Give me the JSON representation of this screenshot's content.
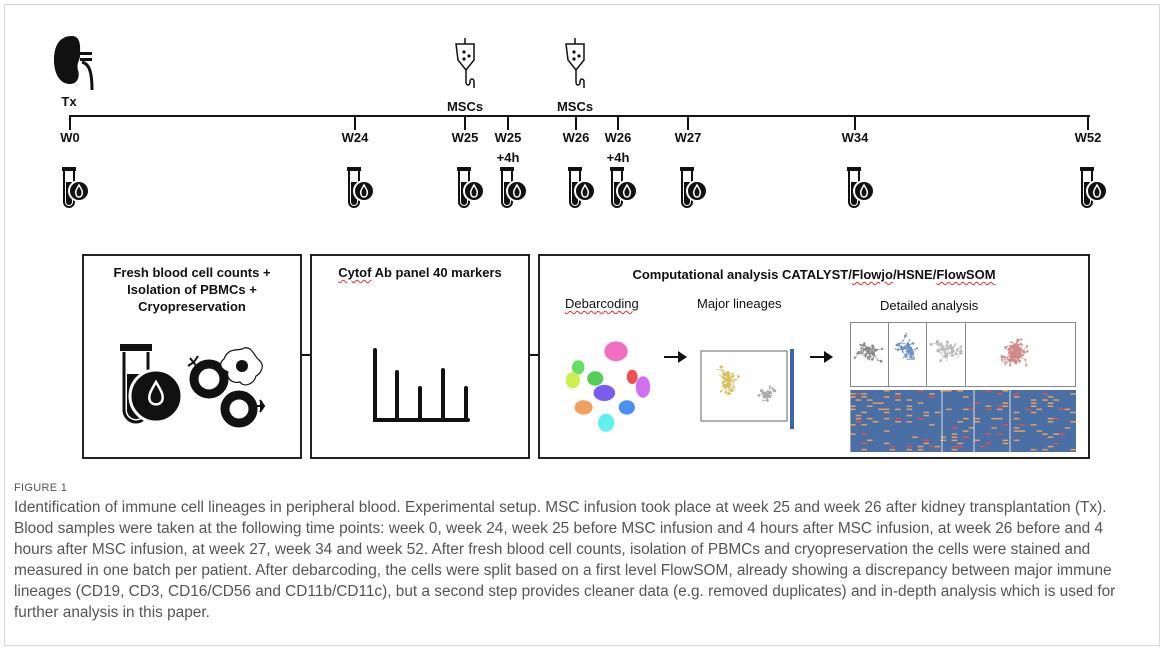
{
  "figure": {
    "transplant_label": "Tx",
    "infusions": [
      {
        "label": "MSCs",
        "timepoint": "W25"
      },
      {
        "label": "MSCs",
        "timepoint": "W26"
      }
    ],
    "timepoints": [
      {
        "label": "W0",
        "sub": ""
      },
      {
        "label": "W24",
        "sub": ""
      },
      {
        "label": "W25",
        "sub": ""
      },
      {
        "label": "W25",
        "sub": "+4h"
      },
      {
        "label": "W26",
        "sub": ""
      },
      {
        "label": "W26",
        "sub": "+4h"
      },
      {
        "label": "W27",
        "sub": ""
      },
      {
        "label": "W34",
        "sub": ""
      },
      {
        "label": "W52",
        "sub": ""
      }
    ],
    "boxes": {
      "processing": {
        "title_lines": [
          "Fresh blood cell counts +",
          "Isolation of PBMCs +",
          "Cryopreservation"
        ]
      },
      "panel": {
        "title_word1": "Cytof",
        "title_rest": " Ab panel 40 markers"
      },
      "analysis": {
        "title_start": "Computational analysis CATALYST/",
        "title_flowjo": "Flowjo",
        "title_mid": "/HSNE/",
        "title_flowsom": "FlowSOM",
        "steps": [
          "Debarcoding",
          "Major lineages",
          "Detailed analysis"
        ]
      }
    },
    "colors": {
      "heatmap_base": "#4a6fa5",
      "heatmap_hot": "#e8a060",
      "debarcode_clusters": [
        "#f06fc0",
        "#66dd66",
        "#ccf050",
        "#55cc55",
        "#f05050",
        "#d070f0",
        "#7a5cf0",
        "#f0a060",
        "#4a90f0",
        "#60f0f0"
      ]
    }
  },
  "caption": {
    "label": "FIGURE 1",
    "text": "Identification of immune cell lineages in peripheral blood. Experimental setup. MSC infusion took place at week 25 and week 26 after kidney transplantation (Tx). Blood samples were taken at the following time points: week 0, week 24, week 25 before MSC infusion and 4 hours after MSC infusion, at week 26 before and 4 hours after MSC infusion, at week 27, week 34 and week 52. After fresh blood cell counts, isolation of PBMCs and cryopreservation the cells were stained and measured in one batch per patient. After debarcoding, the cells were split based on a first level FlowSOM, already showing a discrepancy between major immune lineages (CD19, CD3, CD16/CD56 and CD11b/CD11c), but a second step provides cleaner data (e.g. removed duplicates) and in-depth analysis which is used for further analysis in this paper."
  }
}
